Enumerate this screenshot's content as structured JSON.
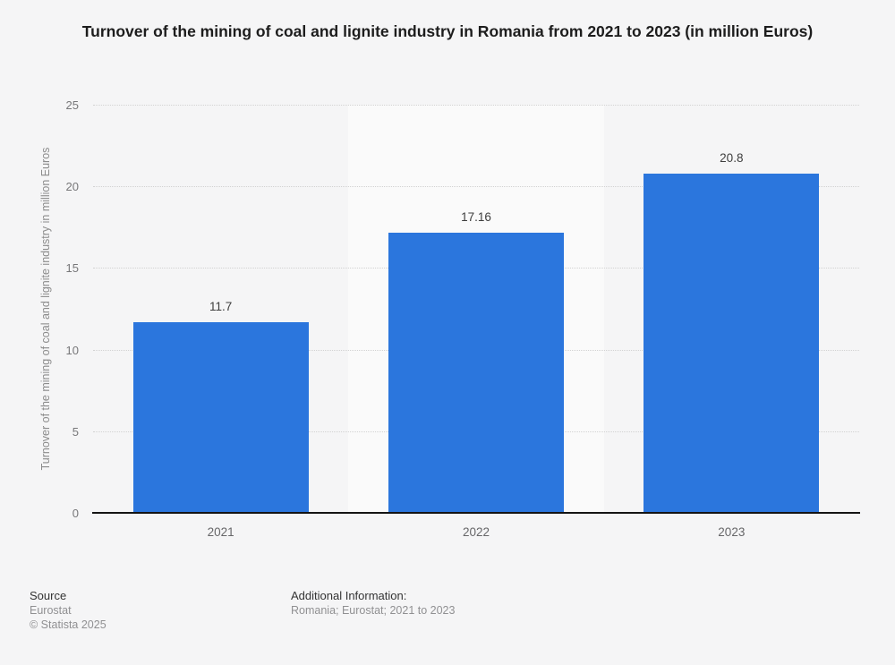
{
  "title": "Turnover of the mining of coal and lignite industry in Romania from 2021 to 2023 (in million Euros)",
  "chart_data": {
    "type": "bar",
    "categories": [
      "2021",
      "2022",
      "2023"
    ],
    "values": [
      11.7,
      17.16,
      20.8
    ],
    "title": "Turnover of the mining of coal and lignite industry in Romania from 2021 to 2023 (in million Euros)",
    "xlabel": "",
    "ylabel": "Turnover of the mining of coal and lignite industry in million Euros",
    "ylim": [
      0,
      25
    ],
    "yticks": [
      0,
      5,
      10,
      15,
      20,
      25
    ],
    "grid": "horizontal-dotted",
    "legend": "none",
    "bar_color": "#2b76dd",
    "band_highlight_color": "#fafafa",
    "background_color": "#f5f5f6"
  },
  "footer": {
    "source_heading": "Source",
    "source_lines": [
      "Eurostat",
      "© Statista 2025"
    ],
    "additional_heading": "Additional Information:",
    "additional_lines": [
      "Romania; Eurostat; 2021 to 2023"
    ]
  }
}
